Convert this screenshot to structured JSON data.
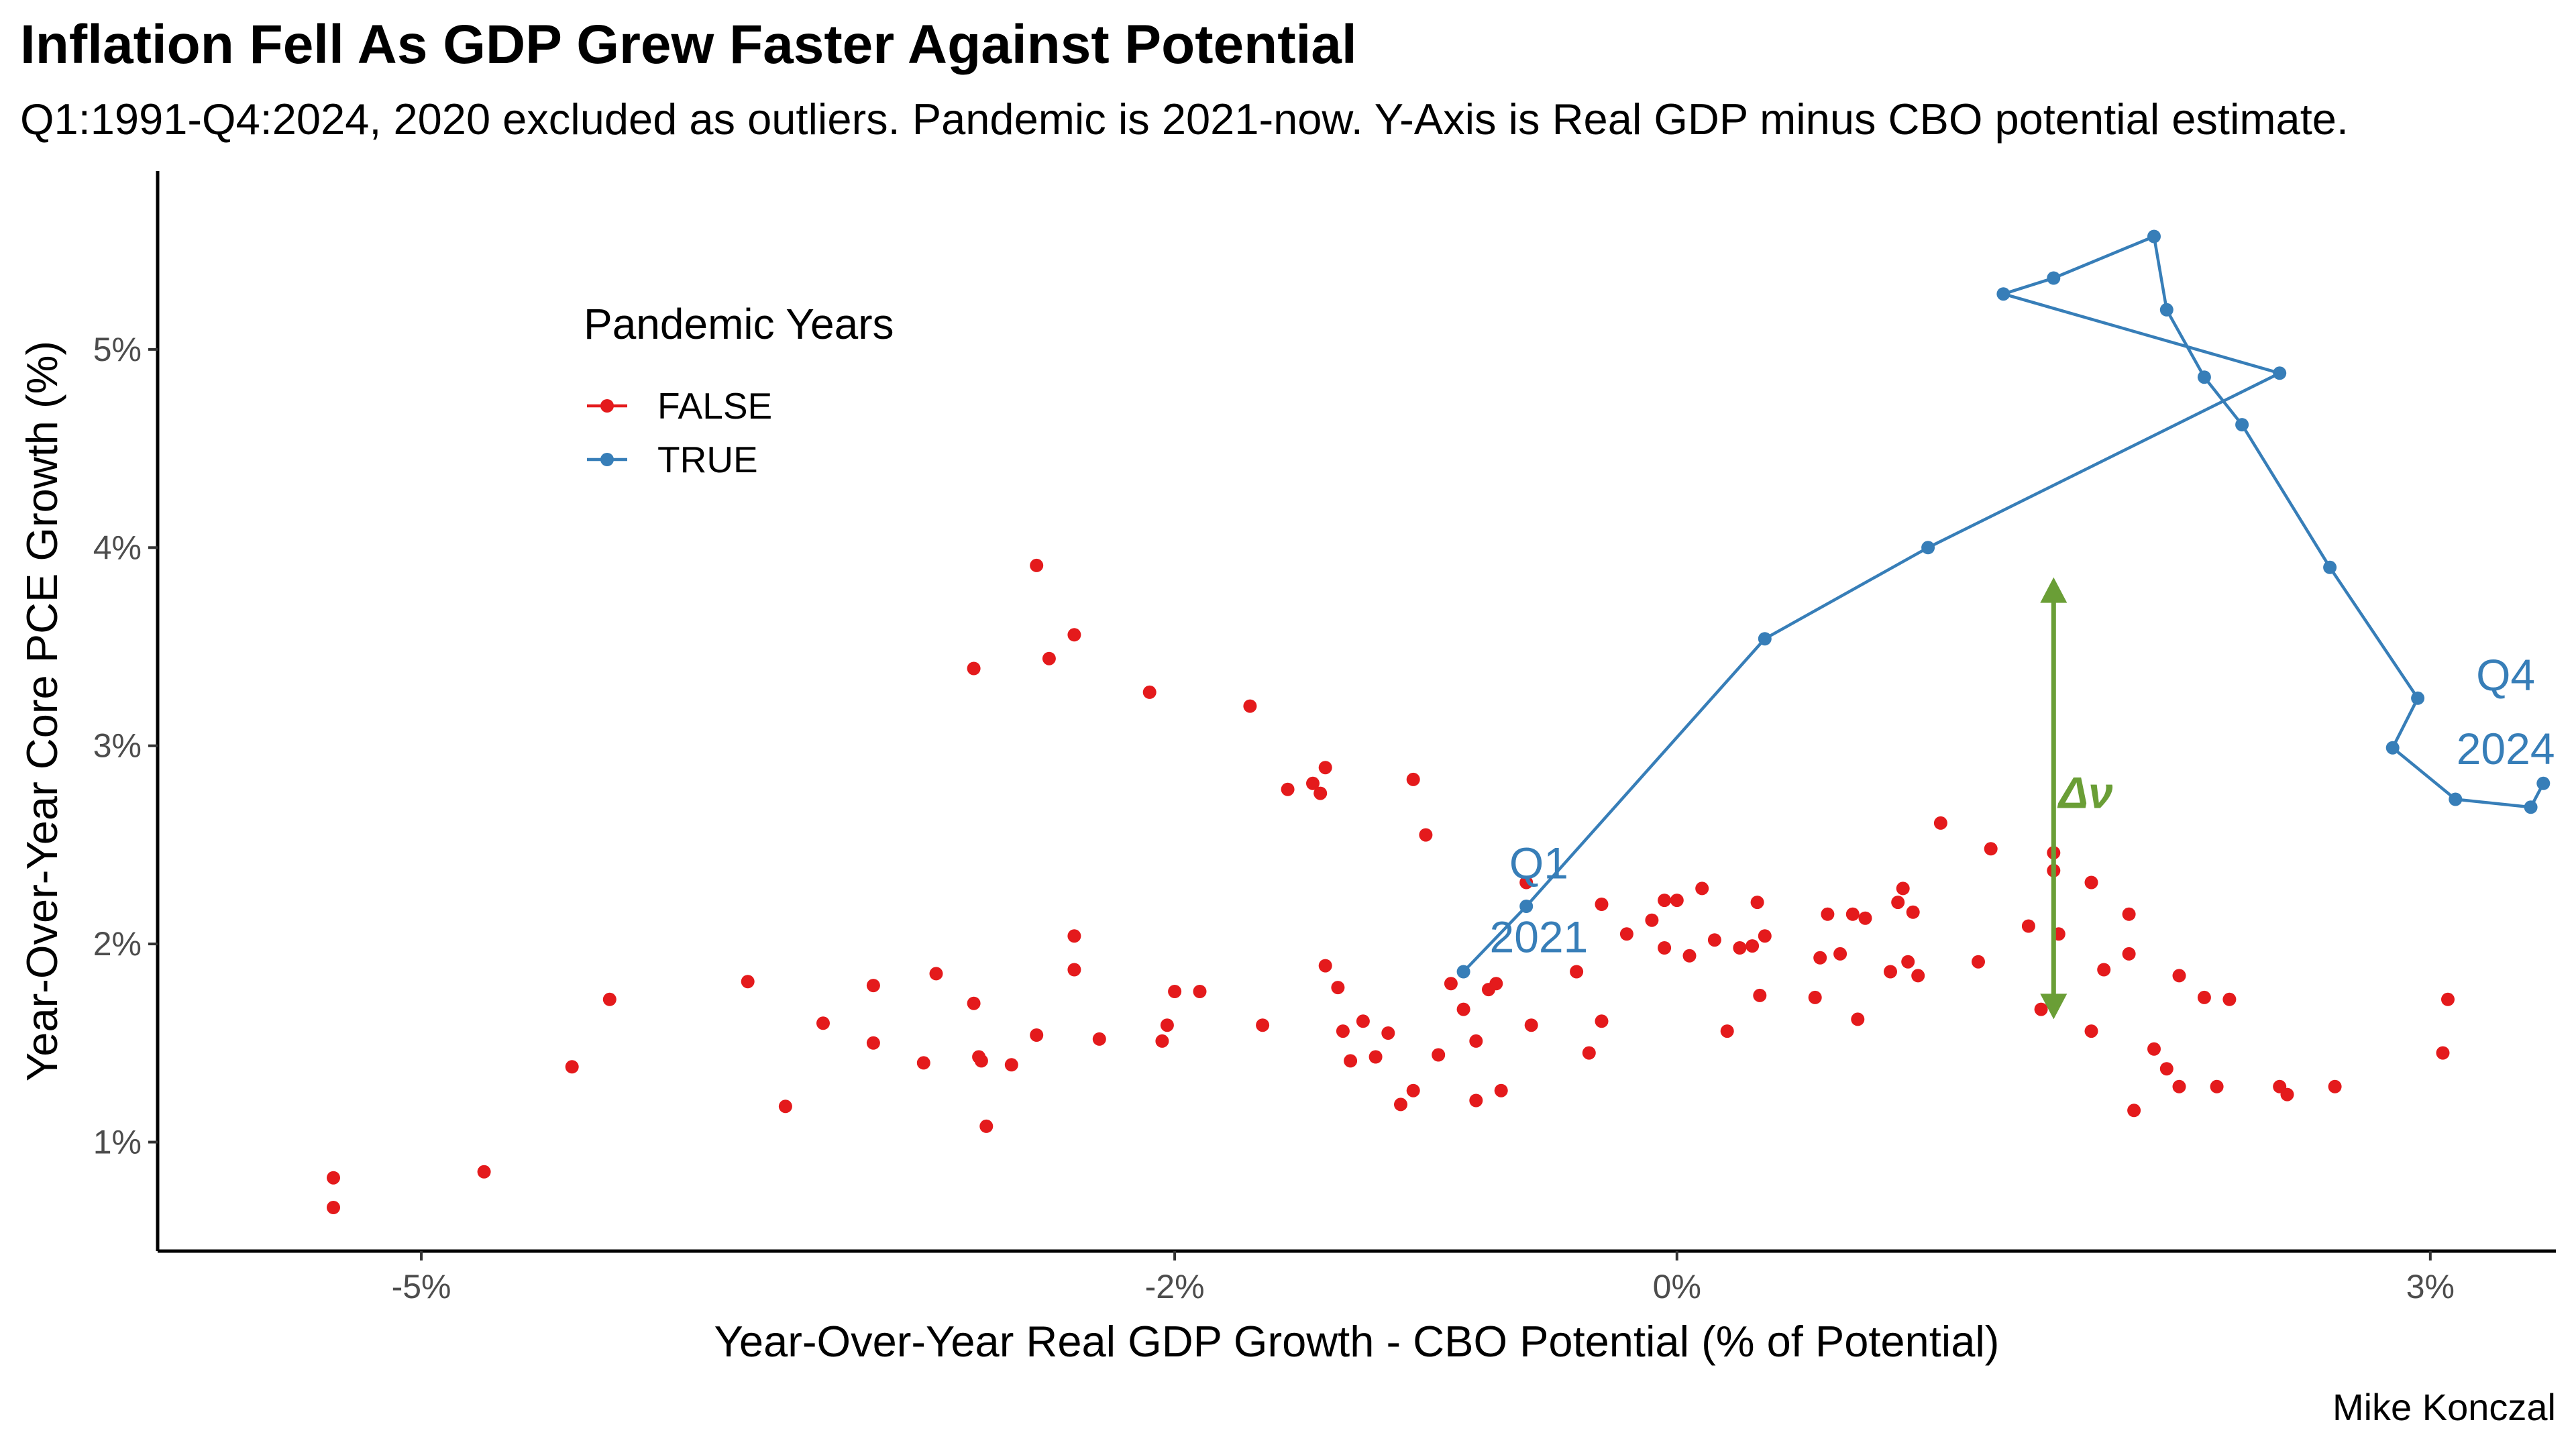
{
  "chart_data": {
    "type": "scatter",
    "title": "Inflation Fell As GDP Grew Faster Against Potential",
    "subtitle": "Q1:1991-Q4:2024, 2020 excluded as outliers. Pandemic is 2021-now. Y-Axis is Real GDP minus CBO potential estimate.",
    "caption": "Mike Konczal",
    "xlabel": "Year-Over-Year Real GDP Growth - CBO Potential (% of Potential)",
    "ylabel": "Year-Over-Year Core PCE Growth (%)",
    "xlim": [
      -6.05,
      3.5
    ],
    "ylim": [
      0.45,
      5.9
    ],
    "x_ticks": [
      {
        "value": -5,
        "label": "-5%"
      },
      {
        "value": -2,
        "label": "-2%"
      },
      {
        "value": 0,
        "label": "0%"
      },
      {
        "value": 3,
        "label": "3%"
      }
    ],
    "y_ticks": [
      {
        "value": 1,
        "label": "1%"
      },
      {
        "value": 2,
        "label": "2%"
      },
      {
        "value": 3,
        "label": "3%"
      },
      {
        "value": 4,
        "label": "4%"
      },
      {
        "value": 5,
        "label": "5%"
      }
    ],
    "grid": false,
    "legend": {
      "title": "Pandemic Years",
      "position": "top-left",
      "entries": [
        "FALSE",
        "TRUE"
      ]
    },
    "series": [
      {
        "name": "FALSE",
        "color": "#e41a1c",
        "mode": "markers",
        "points": [
          [
            -5.35,
            0.82
          ],
          [
            -5.35,
            0.67
          ],
          [
            -4.75,
            0.85
          ],
          [
            -4.4,
            1.38
          ],
          [
            -4.25,
            1.72
          ],
          [
            -3.7,
            1.81
          ],
          [
            -3.55,
            1.18
          ],
          [
            -3.4,
            1.6
          ],
          [
            -3.2,
            1.5
          ],
          [
            -3.2,
            1.79
          ],
          [
            -3.0,
            1.4
          ],
          [
            -2.95,
            1.85
          ],
          [
            -2.8,
            3.39
          ],
          [
            -2.8,
            1.7
          ],
          [
            -2.78,
            1.43
          ],
          [
            -2.77,
            1.41
          ],
          [
            -2.75,
            1.08
          ],
          [
            -2.65,
            1.39
          ],
          [
            -2.55,
            3.91
          ],
          [
            -2.55,
            1.54
          ],
          [
            -2.5,
            3.44
          ],
          [
            -2.4,
            2.04
          ],
          [
            -2.4,
            1.87
          ],
          [
            -2.4,
            3.56
          ],
          [
            -2.3,
            1.52
          ],
          [
            -2.1,
            3.27
          ],
          [
            -2.05,
            1.51
          ],
          [
            -2.03,
            1.59
          ],
          [
            -2.0,
            1.76
          ],
          [
            -1.9,
            1.76
          ],
          [
            -1.7,
            3.2
          ],
          [
            -1.65,
            1.59
          ],
          [
            -1.55,
            2.78
          ],
          [
            -1.45,
            2.81
          ],
          [
            -1.42,
            2.76
          ],
          [
            -1.4,
            2.89
          ],
          [
            -1.4,
            1.89
          ],
          [
            -1.35,
            1.78
          ],
          [
            -1.33,
            1.56
          ],
          [
            -1.3,
            1.41
          ],
          [
            -1.25,
            1.61
          ],
          [
            -1.2,
            1.43
          ],
          [
            -1.15,
            1.55
          ],
          [
            -1.1,
            1.19
          ],
          [
            -1.05,
            2.83
          ],
          [
            -1.05,
            1.26
          ],
          [
            -1.0,
            2.55
          ],
          [
            -0.95,
            1.44
          ],
          [
            -0.9,
            1.8
          ],
          [
            -0.85,
            1.67
          ],
          [
            -0.8,
            1.21
          ],
          [
            -0.8,
            1.51
          ],
          [
            -0.75,
            1.77
          ],
          [
            -0.72,
            1.8
          ],
          [
            -0.7,
            1.26
          ],
          [
            -0.6,
            2.31
          ],
          [
            -0.58,
            1.59
          ],
          [
            -0.4,
            1.86
          ],
          [
            -0.35,
            1.45
          ],
          [
            -0.3,
            1.61
          ],
          [
            -0.3,
            2.2
          ],
          [
            -0.2,
            2.05
          ],
          [
            -0.1,
            2.12
          ],
          [
            -0.05,
            2.22
          ],
          [
            -0.05,
            1.98
          ],
          [
            0.0,
            2.22
          ],
          [
            0.05,
            1.94
          ],
          [
            0.1,
            2.28
          ],
          [
            0.15,
            2.02
          ],
          [
            0.2,
            1.56
          ],
          [
            0.25,
            1.98
          ],
          [
            0.3,
            1.99
          ],
          [
            0.32,
            2.21
          ],
          [
            0.33,
            1.74
          ],
          [
            0.35,
            2.04
          ],
          [
            0.55,
            1.73
          ],
          [
            0.57,
            1.93
          ],
          [
            0.6,
            2.15
          ],
          [
            0.65,
            1.95
          ],
          [
            0.7,
            2.15
          ],
          [
            0.72,
            1.62
          ],
          [
            0.75,
            2.13
          ],
          [
            0.85,
            1.86
          ],
          [
            0.88,
            2.21
          ],
          [
            0.9,
            2.28
          ],
          [
            0.92,
            1.91
          ],
          [
            0.94,
            2.16
          ],
          [
            0.96,
            1.84
          ],
          [
            1.05,
            2.61
          ],
          [
            1.2,
            1.91
          ],
          [
            1.25,
            2.48
          ],
          [
            1.4,
            2.09
          ],
          [
            1.45,
            1.67
          ],
          [
            1.5,
            2.46
          ],
          [
            1.5,
            2.37
          ],
          [
            1.52,
            2.05
          ],
          [
            1.65,
            2.31
          ],
          [
            1.65,
            1.56
          ],
          [
            1.7,
            1.87
          ],
          [
            1.8,
            2.15
          ],
          [
            1.8,
            1.95
          ],
          [
            1.82,
            1.16
          ],
          [
            1.9,
            1.47
          ],
          [
            1.95,
            1.37
          ],
          [
            2.0,
            1.84
          ],
          [
            2.0,
            1.28
          ],
          [
            2.1,
            1.73
          ],
          [
            2.15,
            1.28
          ],
          [
            2.2,
            1.72
          ],
          [
            2.4,
            1.28
          ],
          [
            2.43,
            1.24
          ],
          [
            2.62,
            1.28
          ],
          [
            3.05,
            1.45
          ],
          [
            3.07,
            1.72
          ]
        ]
      },
      {
        "name": "TRUE",
        "color": "#377eb8",
        "mode": "lines+markers",
        "points": [
          [
            -0.85,
            1.86
          ],
          [
            -0.6,
            2.19
          ],
          [
            0.35,
            3.54
          ],
          [
            1.0,
            4.0
          ],
          [
            2.4,
            4.88
          ],
          [
            1.3,
            5.28
          ],
          [
            1.5,
            5.36
          ],
          [
            1.9,
            5.57
          ],
          [
            1.95,
            5.2
          ],
          [
            2.1,
            4.86
          ],
          [
            2.25,
            4.62
          ],
          [
            2.6,
            3.9
          ],
          [
            2.95,
            3.24
          ],
          [
            2.85,
            2.99
          ],
          [
            3.1,
            2.73
          ],
          [
            3.4,
            2.69
          ],
          [
            3.45,
            2.81
          ]
        ]
      }
    ],
    "annotations": [
      {
        "lines": [
          "Q1",
          "2021"
        ],
        "color": "#377eb8",
        "at": [
          -0.55,
          2.33
        ]
      },
      {
        "lines": [
          "Q4",
          "2024"
        ],
        "color": "#377eb8",
        "at": [
          3.3,
          3.28
        ]
      },
      {
        "text": "Δν",
        "color": "#6a9e36",
        "at": [
          1.6,
          2.76
        ],
        "arrow_from": [
          1.5,
          1.62
        ],
        "arrow_to": [
          1.5,
          3.85
        ]
      }
    ]
  }
}
